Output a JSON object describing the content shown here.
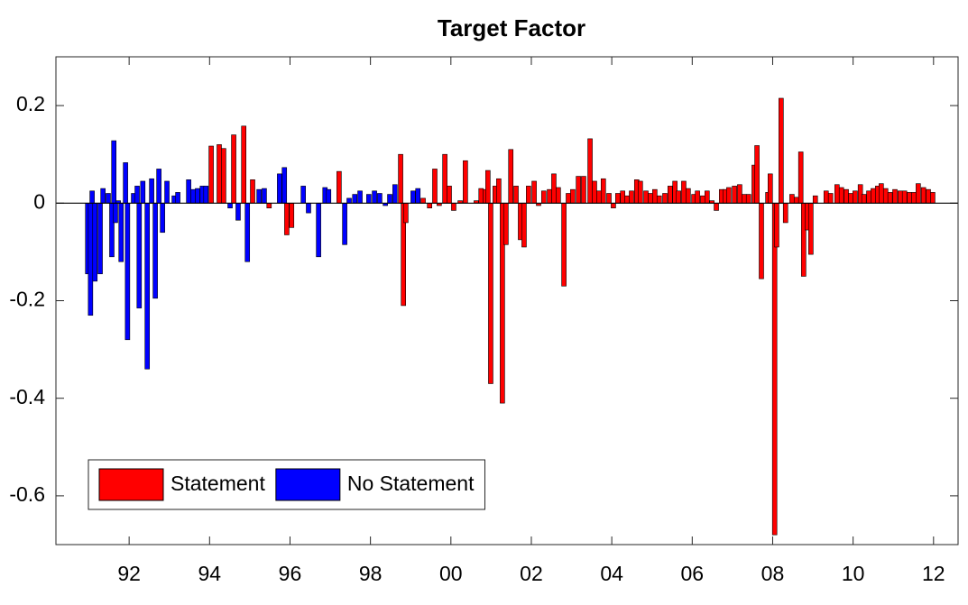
{
  "chart_data": {
    "type": "bar",
    "title": "Target Factor",
    "xlim": [
      1990.18,
      2012.61
    ],
    "xticks": [
      {
        "value": 1992,
        "label": "92"
      },
      {
        "value": 1994,
        "label": "94"
      },
      {
        "value": 1996,
        "label": "96"
      },
      {
        "value": 1998,
        "label": "98"
      },
      {
        "value": 2000,
        "label": "00"
      },
      {
        "value": 2002,
        "label": "02"
      },
      {
        "value": 2004,
        "label": "04"
      },
      {
        "value": 2006,
        "label": "06"
      },
      {
        "value": 2008,
        "label": "08"
      },
      {
        "value": 2010,
        "label": "10"
      },
      {
        "value": 2012,
        "label": "12"
      }
    ],
    "ylim": [
      -0.7,
      0.3
    ],
    "yticks": [
      -0.6,
      -0.4,
      -0.2,
      0,
      0.2
    ],
    "legend": "bottom-left",
    "series": [
      {
        "name": "Statement",
        "color": "#ff0000",
        "x": [
          1994.04,
          1994.24,
          1994.35,
          1994.6,
          1994.85,
          1995.07,
          1995.48,
          1995.92,
          1996.04,
          1997.22,
          1998.75,
          1998.82,
          1998.88,
          1999.31,
          1999.47,
          1999.6,
          1999.71,
          1999.85,
          1999.96,
          2000.07,
          2000.23,
          2000.36,
          2000.63,
          2000.75,
          2000.86,
          2000.92,
          2000.99,
          2001.1,
          2001.19,
          2001.28,
          2001.37,
          2001.49,
          2001.62,
          2001.73,
          2001.82,
          2001.93,
          2002.07,
          2002.18,
          2002.31,
          2002.45,
          2002.56,
          2002.67,
          2002.81,
          2002.92,
          2003.03,
          2003.17,
          2003.3,
          2003.46,
          2003.57,
          2003.68,
          2003.79,
          2003.93,
          2004.04,
          2004.15,
          2004.27,
          2004.38,
          2004.49,
          2004.62,
          2004.71,
          2004.85,
          2004.96,
          2005.07,
          2005.18,
          2005.32,
          2005.45,
          2005.57,
          2005.66,
          2005.79,
          2005.9,
          2006.04,
          2006.13,
          2006.26,
          2006.37,
          2006.49,
          2006.6,
          2006.73,
          2006.82,
          2006.91,
          2007.05,
          2007.18,
          2007.29,
          2007.4,
          2007.54,
          2007.61,
          2007.72,
          2007.88,
          2007.94,
          2008.05,
          2008.1,
          2008.21,
          2008.32,
          2008.48,
          2008.59,
          2008.7,
          2008.77,
          2008.86,
          2008.95,
          2009.06,
          2009.33,
          2009.44,
          2009.6,
          2009.71,
          2009.83,
          2009.94,
          2010.05,
          2010.18,
          2010.27,
          2010.39,
          2010.5,
          2010.61,
          2010.7,
          2010.81,
          2010.92,
          2011.04,
          2011.17,
          2011.28,
          2011.4,
          2011.51,
          2011.62,
          2011.75,
          2011.87,
          2011.98
        ],
        "values": [
          0.117,
          0.12,
          0.112,
          0.14,
          0.158,
          0.048,
          -0.01,
          -0.065,
          -0.05,
          0.065,
          0.1,
          -0.21,
          -0.04,
          0.01,
          -0.01,
          0.07,
          -0.005,
          0.1,
          0.035,
          -0.015,
          0.005,
          0.087,
          0.005,
          0.03,
          0.028,
          0.067,
          -0.37,
          0.035,
          0.05,
          -0.41,
          -0.085,
          0.11,
          0.035,
          -0.075,
          -0.09,
          0.035,
          0.045,
          -0.005,
          0.025,
          0.028,
          0.06,
          0.032,
          -0.17,
          0.02,
          0.028,
          0.055,
          0.055,
          0.132,
          0.045,
          0.025,
          0.05,
          0.02,
          -0.01,
          0.02,
          0.025,
          0.015,
          0.025,
          0.048,
          0.045,
          0.025,
          0.02,
          0.028,
          0.015,
          0.02,
          0.035,
          0.045,
          0.025,
          0.045,
          0.03,
          0.018,
          0.025,
          0.015,
          0.025,
          0.005,
          -0.015,
          0.028,
          0.028,
          0.032,
          0.035,
          0.038,
          0.018,
          0.018,
          0.078,
          0.118,
          -0.155,
          0.022,
          0.06,
          -0.68,
          -0.09,
          0.215,
          -0.04,
          0.018,
          0.012,
          0.105,
          -0.15,
          -0.055,
          -0.105,
          0.015,
          0.025,
          0.02,
          0.038,
          0.032,
          0.028,
          0.02,
          0.025,
          0.038,
          0.018,
          0.025,
          0.03,
          0.035,
          0.04,
          0.03,
          0.022,
          0.028,
          0.025,
          0.025,
          0.022,
          0.022,
          0.04,
          0.032,
          0.028,
          0.022
        ]
      },
      {
        "name": "No Statement",
        "color": "#0000ff",
        "x": [
          1990.97,
          1991.04,
          1991.08,
          1991.15,
          1991.28,
          1991.35,
          1991.48,
          1991.57,
          1991.62,
          1991.66,
          1991.73,
          1991.8,
          1991.91,
          1991.96,
          1992.11,
          1992.2,
          1992.25,
          1992.34,
          1992.45,
          1992.56,
          1992.65,
          1992.74,
          1992.83,
          1992.94,
          1993.12,
          1993.21,
          1993.48,
          1993.59,
          1993.7,
          1993.82,
          1993.91,
          1994.51,
          1994.71,
          1994.94,
          1995.23,
          1995.36,
          1995.74,
          1995.86,
          1996.33,
          1996.46,
          1996.71,
          1996.87,
          1996.96,
          1997.36,
          1997.47,
          1997.61,
          1997.74,
          1997.96,
          1998.1,
          1998.23,
          1998.37,
          1998.48,
          1998.61,
          1999.06,
          1999.18
        ],
        "values": [
          -0.145,
          -0.23,
          0.025,
          -0.16,
          -0.145,
          0.03,
          0.02,
          -0.11,
          0.128,
          -0.04,
          0.005,
          -0.12,
          0.083,
          -0.28,
          0.02,
          0.035,
          -0.215,
          0.045,
          -0.34,
          0.05,
          -0.195,
          0.07,
          -0.06,
          0.045,
          0.015,
          0.022,
          0.048,
          0.028,
          0.03,
          0.035,
          0.035,
          -0.01,
          -0.035,
          -0.12,
          0.028,
          0.03,
          0.06,
          0.073,
          0.035,
          -0.02,
          -0.11,
          0.032,
          0.028,
          -0.085,
          0.01,
          0.018,
          0.025,
          0.018,
          0.025,
          0.02,
          -0.005,
          0.018,
          0.038,
          0.025,
          0.03
        ]
      }
    ]
  }
}
